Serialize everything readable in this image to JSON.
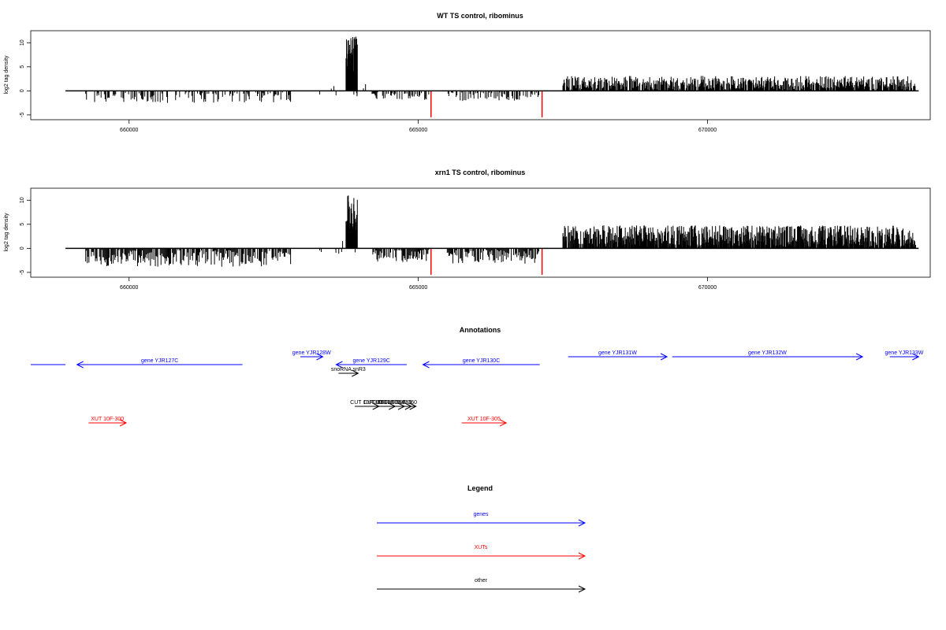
{
  "colors": {
    "gene": "#0000ff",
    "xut": "#ff0000",
    "other": "#000000",
    "signal": "#000000",
    "highlight": "#ff0000"
  },
  "chart_data": [
    {
      "type": "bar",
      "title": "WT TS control, ribominus",
      "ylabel": "log2 tag density",
      "xlim": [
        658300,
        673850
      ],
      "ylim": [
        -6,
        12.5
      ],
      "xticks": [
        660000,
        665000,
        670000
      ],
      "xtick_labels": [
        "660000",
        "665000",
        "670000"
      ],
      "yticks": [
        -5,
        0,
        5,
        10
      ],
      "ytick_labels": [
        "-5",
        "0",
        "5",
        "10"
      ],
      "baseline": [
        658900,
        673650
      ],
      "highlight_bars": [
        {
          "x": 665220,
          "value": -5.5
        },
        {
          "x": 667140,
          "value": -5.5
        }
      ]
    },
    {
      "type": "bar",
      "title": "xrn1 TS control, ribominus",
      "ylabel": "log2 tag density",
      "xlim": [
        658300,
        673850
      ],
      "ylim": [
        -6,
        12.5
      ],
      "xticks": [
        660000,
        665000,
        670000
      ],
      "xtick_labels": [
        "660000",
        "665000",
        "670000"
      ],
      "yticks": [
        -5,
        0,
        5,
        10
      ],
      "ytick_labels": [
        "-5",
        "0",
        "5",
        "10"
      ],
      "baseline": [
        658900,
        673650
      ],
      "highlight_bars": [
        {
          "x": 665220,
          "value": -5.5
        },
        {
          "x": 667140,
          "value": -5.5
        }
      ]
    }
  ],
  "signal_regions": {
    "neg_blocks": [
      [
        659250,
        662800,
        2.2
      ],
      [
        664200,
        665200,
        1.6
      ],
      [
        665500,
        667100,
        1.8
      ]
    ],
    "peak": [
      663750,
      663950,
      11.5
    ],
    "pos_region": [
      667500,
      673600,
      2.8
    ]
  },
  "annotations": {
    "title": "Annotations",
    "items": [
      {
        "label": "",
        "cls": "gene",
        "start": 658300,
        "end": 658900,
        "row": 1,
        "arrow": ""
      },
      {
        "label": "gene YJR127C",
        "cls": "gene",
        "start": 659100,
        "end": 661960,
        "row": 1,
        "arrow": "left"
      },
      {
        "label": "gene YJR128W",
        "cls": "gene",
        "start": 662960,
        "end": 663350,
        "row": 0,
        "arrow": "right"
      },
      {
        "label": "gene YJR129C",
        "cls": "gene",
        "start": 663580,
        "end": 664800,
        "row": 1,
        "arrow": "left"
      },
      {
        "label": "snoRNA snR3",
        "cls": "other",
        "start": 663620,
        "end": 663960,
        "row": 2,
        "arrow": "right"
      },
      {
        "label": "gene YJR130C",
        "cls": "gene",
        "start": 665080,
        "end": 667100,
        "row": 1,
        "arrow": "left"
      },
      {
        "label": "gene YJR131W",
        "cls": "gene",
        "start": 667590,
        "end": 669300,
        "row": 0,
        "arrow": "right"
      },
      {
        "label": "gene YJR132W",
        "cls": "gene",
        "start": 669390,
        "end": 672680,
        "row": 0,
        "arrow": "right"
      },
      {
        "label": "gene YJR133W",
        "cls": "gene",
        "start": 673150,
        "end": 673650,
        "row": 0,
        "arrow": "right"
      },
      {
        "label": "CUT 10F-356",
        "cls": "other",
        "start": 663900,
        "end": 664320,
        "row": 3,
        "arrow": "right"
      },
      {
        "label": "CUT 10F-357",
        "cls": "other",
        "start": 664080,
        "end": 664600,
        "row": 3,
        "arrow": "right"
      },
      {
        "label": "CUT 10F-358",
        "cls": "other",
        "start": 664200,
        "end": 664760,
        "row": 3,
        "arrow": "right"
      },
      {
        "label": "CUT 10F-359",
        "cls": "other",
        "start": 664320,
        "end": 664880,
        "row": 3,
        "arrow": "right"
      },
      {
        "label": "CUT 10F-360",
        "cls": "other",
        "start": 664420,
        "end": 664960,
        "row": 3,
        "arrow": "right"
      },
      {
        "label": "XUT 10F-300",
        "cls": "xut",
        "start": 659300,
        "end": 659950,
        "row": 4,
        "arrow": "right"
      },
      {
        "label": "XUT 10F-305",
        "cls": "xut",
        "start": 665750,
        "end": 666520,
        "row": 4,
        "arrow": "right"
      }
    ]
  },
  "legend": {
    "title": "Legend",
    "items": [
      {
        "label": "genes",
        "cls": "gene"
      },
      {
        "label": "XUTs",
        "cls": "xut"
      },
      {
        "label": "other",
        "cls": "other"
      }
    ]
  }
}
